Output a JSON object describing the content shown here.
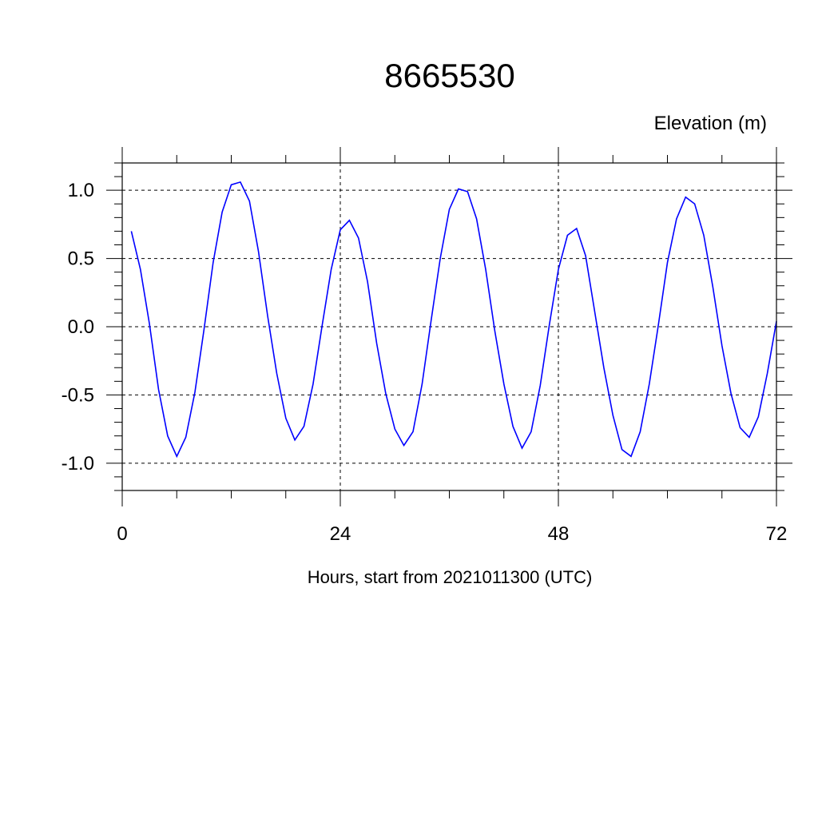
{
  "chart_data": {
    "type": "line",
    "title": "8665530",
    "subtitle": "Elevation (m)",
    "xlabel": "Hours, start from 2021011300 (UTC)",
    "ylabel": "",
    "xlim": [
      0,
      72
    ],
    "ylim": [
      -1.2,
      1.2
    ],
    "x_ticks": [
      0,
      24,
      48,
      72
    ],
    "x_tick_labels": [
      "0",
      "24",
      "48",
      "72"
    ],
    "x_minor_step": 6,
    "y_ticks": [
      -1.0,
      -0.5,
      0.0,
      0.5,
      1.0
    ],
    "y_tick_labels": [
      "-1.0",
      "-0.5",
      "0.0",
      "0.5",
      "1.0"
    ],
    "y_minor_step": 0.1,
    "grid": "dashed at major ticks",
    "line_color": "#0000ff",
    "x": [
      1,
      2,
      3,
      4,
      5,
      6,
      7,
      8,
      9,
      10,
      11,
      12,
      13,
      14,
      15,
      16,
      17,
      18,
      19,
      20,
      21,
      22,
      23,
      24,
      25,
      26,
      27,
      28,
      29,
      30,
      31,
      32,
      33,
      34,
      35,
      36,
      37,
      38,
      39,
      40,
      41,
      42,
      43,
      44,
      45,
      46,
      47,
      48,
      49,
      50,
      51,
      52,
      53,
      54,
      55,
      56,
      57,
      58,
      59,
      60,
      61,
      62,
      63,
      64,
      65,
      66,
      67,
      68,
      69,
      70,
      71,
      72
    ],
    "y": [
      0.7,
      0.42,
      0.02,
      -0.46,
      -0.8,
      -0.95,
      -0.81,
      -0.48,
      -0.02,
      0.47,
      0.84,
      1.04,
      1.06,
      0.92,
      0.55,
      0.08,
      -0.34,
      -0.67,
      -0.83,
      -0.73,
      -0.42,
      0.01,
      0.42,
      0.71,
      0.78,
      0.65,
      0.33,
      -0.12,
      -0.49,
      -0.75,
      -0.87,
      -0.77,
      -0.42,
      0.05,
      0.5,
      0.86,
      1.01,
      0.99,
      0.79,
      0.42,
      -0.03,
      -0.42,
      -0.73,
      -0.89,
      -0.77,
      -0.43,
      0.01,
      0.42,
      0.67,
      0.72,
      0.52,
      0.11,
      -0.3,
      -0.65,
      -0.9,
      -0.95,
      -0.77,
      -0.42,
      0.01,
      0.47,
      0.79,
      0.95,
      0.9,
      0.67,
      0.29,
      -0.14,
      -0.49,
      -0.74,
      -0.81,
      -0.66,
      -0.34,
      0.04
    ]
  }
}
